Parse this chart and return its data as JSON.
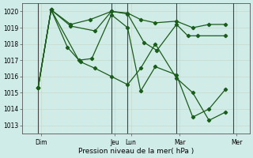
{
  "title": "",
  "xlabel": "Pression niveau de la mer( hPa )",
  "bg_color": "#d0ece8",
  "grid_color_major": "#c8d8c8",
  "grid_color_minor": "#dce8dc",
  "line_color": "#1a5c1a",
  "ylim": [
    1012.5,
    1020.5
  ],
  "yticks": [
    1013,
    1014,
    1015,
    1016,
    1017,
    1018,
    1019,
    1020
  ],
  "xlim": [
    0,
    14
  ],
  "vline_color": "#444444",
  "vlines_x": [
    1.0,
    5.5,
    6.5,
    9.5,
    13.0
  ],
  "day_labels": [
    {
      "label": "Dim",
      "x": 1.2
    },
    {
      "label": "Jeu",
      "x": 5.7
    },
    {
      "label": "Lun",
      "x": 6.7
    },
    {
      "label": "Mar",
      "x": 9.7
    },
    {
      "label": "Mer",
      "x": 13.2
    }
  ],
  "series": [
    {
      "x": [
        1.0,
        1.8,
        3.0,
        4.2,
        5.5,
        6.5,
        7.3,
        8.2,
        9.5,
        10.5,
        11.5,
        12.5
      ],
      "y": [
        1015.3,
        1020.1,
        1019.2,
        1019.5,
        1020.0,
        1019.9,
        1019.5,
        1019.3,
        1019.4,
        1019.0,
        1019.2,
        1019.2
      ]
    },
    {
      "x": [
        1.0,
        1.8,
        3.0,
        4.5,
        5.5,
        6.5,
        7.5,
        8.3,
        9.5,
        10.2,
        10.8,
        12.5
      ],
      "y": [
        1015.3,
        1020.1,
        1019.1,
        1018.8,
        1020.0,
        1019.85,
        1018.1,
        1017.6,
        1019.2,
        1018.5,
        1018.5,
        1018.5
      ]
    },
    {
      "x": [
        1.0,
        1.8,
        2.8,
        3.6,
        4.5,
        5.5,
        6.5,
        7.3,
        8.2,
        9.5,
        10.5,
        11.5,
        12.5
      ],
      "y": [
        1015.3,
        1020.1,
        1017.8,
        1016.9,
        1016.5,
        1016.0,
        1015.5,
        1016.5,
        1018.0,
        1015.9,
        1015.0,
        1013.3,
        1013.8
      ]
    },
    {
      "x": [
        1.0,
        1.8,
        3.5,
        4.3,
        5.5,
        6.5,
        7.3,
        8.2,
        9.5,
        10.5,
        11.5,
        12.5
      ],
      "y": [
        1015.3,
        1020.1,
        1017.0,
        1017.1,
        1019.8,
        1019.0,
        1015.1,
        1016.6,
        1016.1,
        1013.5,
        1014.0,
        1015.2
      ]
    }
  ]
}
